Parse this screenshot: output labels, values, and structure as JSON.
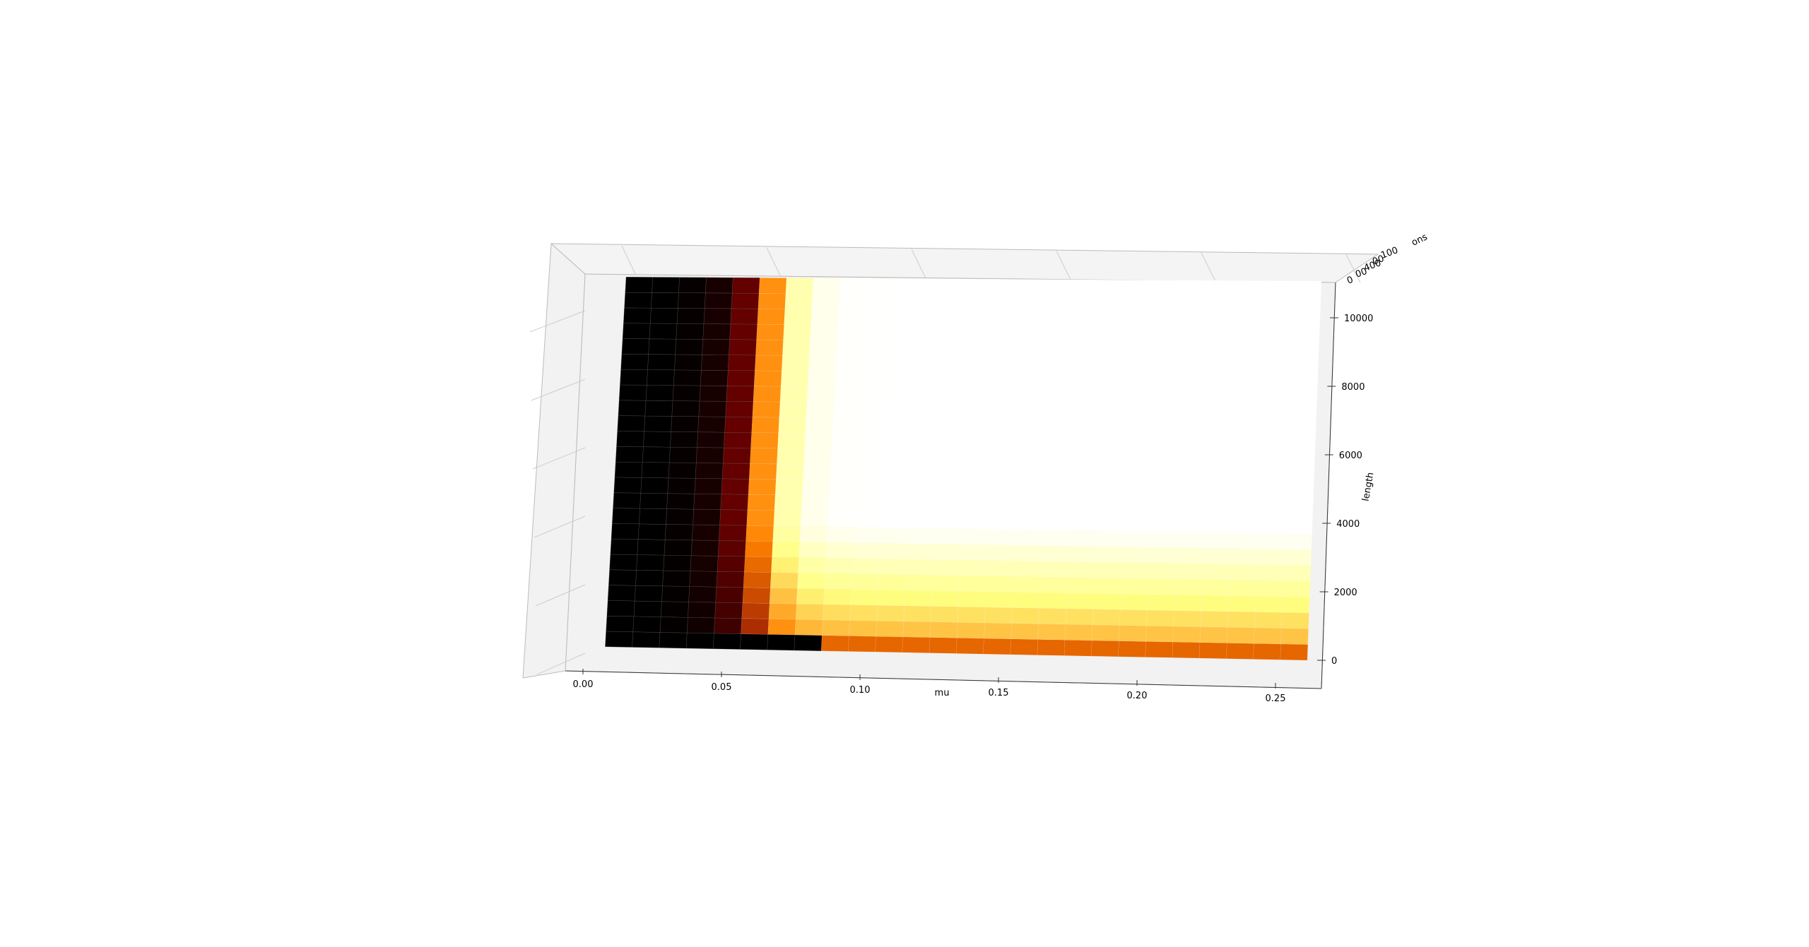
{
  "chart_data": {
    "type": "surface3d",
    "colormap": "afmhot",
    "xlabel": "mu",
    "ylabel": "length",
    "zlabel": "",
    "depth_axis_label_fragment": "ons",
    "xticks": [
      "0.00",
      "0.05",
      "0.10",
      "0.15",
      "0.20",
      "0.25"
    ],
    "yticks": [
      "0",
      "2000",
      "4000",
      "6000",
      "8000",
      "10000"
    ],
    "depth_ticks_visible": [
      "0",
      "00",
      "400",
      "00",
      "100"
    ],
    "xlim": [
      0.0,
      0.25
    ],
    "ylim": [
      0,
      10000
    ],
    "grid": true,
    "surface_mu_range": [
      0.01,
      0.25
    ],
    "surface_length_range": [
      0,
      10000
    ],
    "transition_mu": 0.06,
    "notes_on_values": "Surface is dark (low) for mu < ~0.05, rises sharply through red/orange/yellow around mu ~0.06-0.08 and is white (saturated high) for larger mu; along the bottom edge the surface shows orange/black for all mu."
  }
}
